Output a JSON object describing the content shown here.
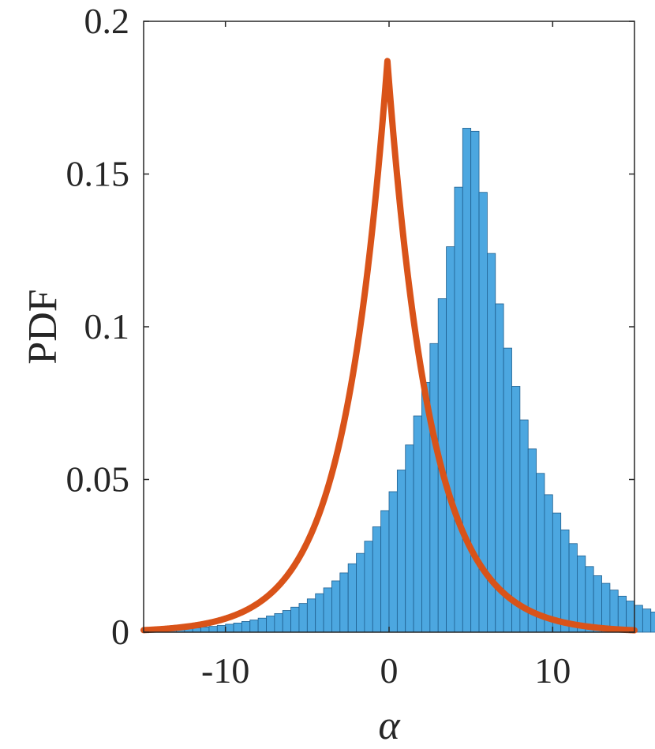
{
  "chart_data": {
    "type": "bar",
    "xlabel": "α",
    "ylabel": "PDF",
    "xlim": [
      -15,
      15
    ],
    "ylim": [
      0,
      0.2
    ],
    "xticks": [
      -10,
      0,
      10
    ],
    "xtick_labels": [
      "-10",
      "0",
      "10"
    ],
    "yticks": [
      0,
      0.05,
      0.1,
      0.15,
      0.2
    ],
    "ytick_labels": [
      "0",
      "0.05",
      "0.1",
      "0.15",
      "0.2"
    ],
    "grid": false,
    "histogram": {
      "bin_width": 0.5,
      "bin_start": -15,
      "values": [
        0.0006,
        0.0007,
        0.0008,
        0.0009,
        0.0011,
        0.0012,
        0.0014,
        0.0017,
        0.0019,
        0.0022,
        0.0026,
        0.003,
        0.0035,
        0.004,
        0.0046,
        0.0053,
        0.0061,
        0.0071,
        0.0082,
        0.0094,
        0.0109,
        0.0126,
        0.0145,
        0.0168,
        0.0194,
        0.0224,
        0.0258,
        0.0298,
        0.0345,
        0.0398,
        0.046,
        0.0531,
        0.0613,
        0.0708,
        0.0818,
        0.0945,
        0.1092,
        0.1262,
        0.1457,
        0.165,
        0.164,
        0.144,
        0.124,
        0.1075,
        0.093,
        0.0805,
        0.0695,
        0.06,
        0.052,
        0.045,
        0.039,
        0.0335,
        0.029,
        0.025,
        0.0215,
        0.0185,
        0.016,
        0.0138,
        0.0118,
        0.0102,
        0.0088,
        0.0076,
        0.0066,
        0.0057,
        0.0049,
        0.0042,
        0.0036,
        0.0031,
        0.0027,
        0.0023
      ]
    },
    "fit_curve": {
      "type": "line",
      "peak_x": -0.1,
      "peak_y": 0.187,
      "scale": 2.65,
      "x_range": [
        -15,
        15
      ]
    },
    "colors": {
      "bars": "#4ca7e0",
      "bar_edge": "#1f5f8f",
      "curve": "#d95319",
      "axis": "#262626"
    }
  }
}
